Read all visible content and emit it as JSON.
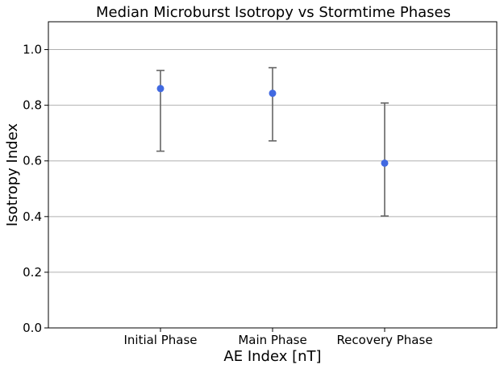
{
  "chart_data": {
    "type": "scatter",
    "title": "Median Microburst Isotropy vs Stormtime Phases",
    "xlabel": "AE Index [nT]",
    "ylabel": "Isotropy Index",
    "categories": [
      "Initial Phase",
      "Main Phase",
      "Recovery Phase"
    ],
    "values": [
      0.86,
      0.843,
      0.592
    ],
    "error_low": [
      0.635,
      0.672,
      0.402
    ],
    "error_high": [
      0.925,
      0.935,
      0.808
    ],
    "ylim": [
      0.0,
      1.1
    ],
    "yticks": [
      0.0,
      0.2,
      0.4,
      0.6,
      0.8,
      1.0
    ],
    "ytick_labels": [
      "0.0",
      "0.2",
      "0.4",
      "0.6",
      "0.8",
      "1.0"
    ],
    "grid": "horizontal",
    "point_color": "#4169e1",
    "errorbar_color": "#666666"
  }
}
